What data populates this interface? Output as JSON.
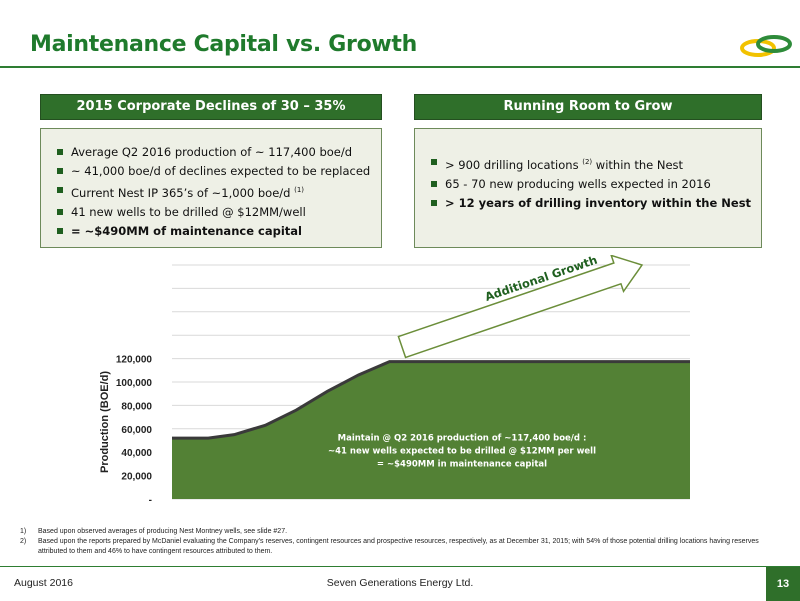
{
  "slide": {
    "title": "Maintenance Capital vs. Growth",
    "logo_icon": "seven-generations-logo-icon",
    "accent_color": "#2f6f2a"
  },
  "left_panel": {
    "header": "2015 Corporate Declines of 30 – 35%",
    "bullets": [
      {
        "text": "Average Q2 2016 production of ~ 117,400 boe/d",
        "sup": ""
      },
      {
        "text": "~ 41,000 boe/d of declines expected to be replaced",
        "sup": ""
      },
      {
        "text": "Current Nest IP 365’s of ~1,000 boe/d",
        "sup": "(1)"
      },
      {
        "text": "41 new wells to be drilled @ $12MM/well",
        "sup": ""
      },
      {
        "text": " = ~$490MM of maintenance capital",
        "sup": "",
        "bold": true
      }
    ]
  },
  "right_panel": {
    "header": "Running Room to Grow",
    "bullets": [
      {
        "text_before": "> 900 drilling locations",
        "sup": "(2)",
        "text_after": " within the Nest"
      },
      {
        "text": "65 - 70 new producing wells expected in 2016"
      },
      {
        "text": "> 12 years of drilling inventory within the Nest",
        "bold": true
      }
    ]
  },
  "chart_data": {
    "type": "area",
    "ylabel": "Production (BOE/d)",
    "yticks": [
      "-",
      "20,000",
      "40,000",
      "60,000",
      "80,000",
      "100,000",
      "120,000"
    ],
    "ylim": [
      0,
      200000
    ],
    "grid": true,
    "x": [
      0,
      0.07,
      0.12,
      0.18,
      0.24,
      0.3,
      0.36,
      0.42,
      1.0
    ],
    "y": [
      52000,
      52000,
      55000,
      63000,
      76000,
      92000,
      106000,
      117400,
      117400
    ],
    "fill_color": "#538135",
    "annotation": [
      "Maintain @ Q2 2016 production of ~117,400 boe/d :",
      "~41 new wells expected to be drilled @ $12MM per well",
      "= ~$490MM in maintenance capital"
    ],
    "arrow_label": "Additional Growth"
  },
  "footnotes": [
    {
      "num": "1)",
      "text": "Based upon observed averages of producing Nest Montney wells, see slide #27."
    },
    {
      "num": "2)",
      "text": "Based upon the reports prepared by McDaniel evaluating the Company’s reserves, contingent resources and prospective resources, respectively, as at December 31, 2015; with 54% of those potential drilling locations having reserves attributed to them and 46% to have contingent resources attributed to them."
    }
  ],
  "footer": {
    "date": "August 2016",
    "company": "Seven Generations Energy Ltd.",
    "page": "13"
  }
}
